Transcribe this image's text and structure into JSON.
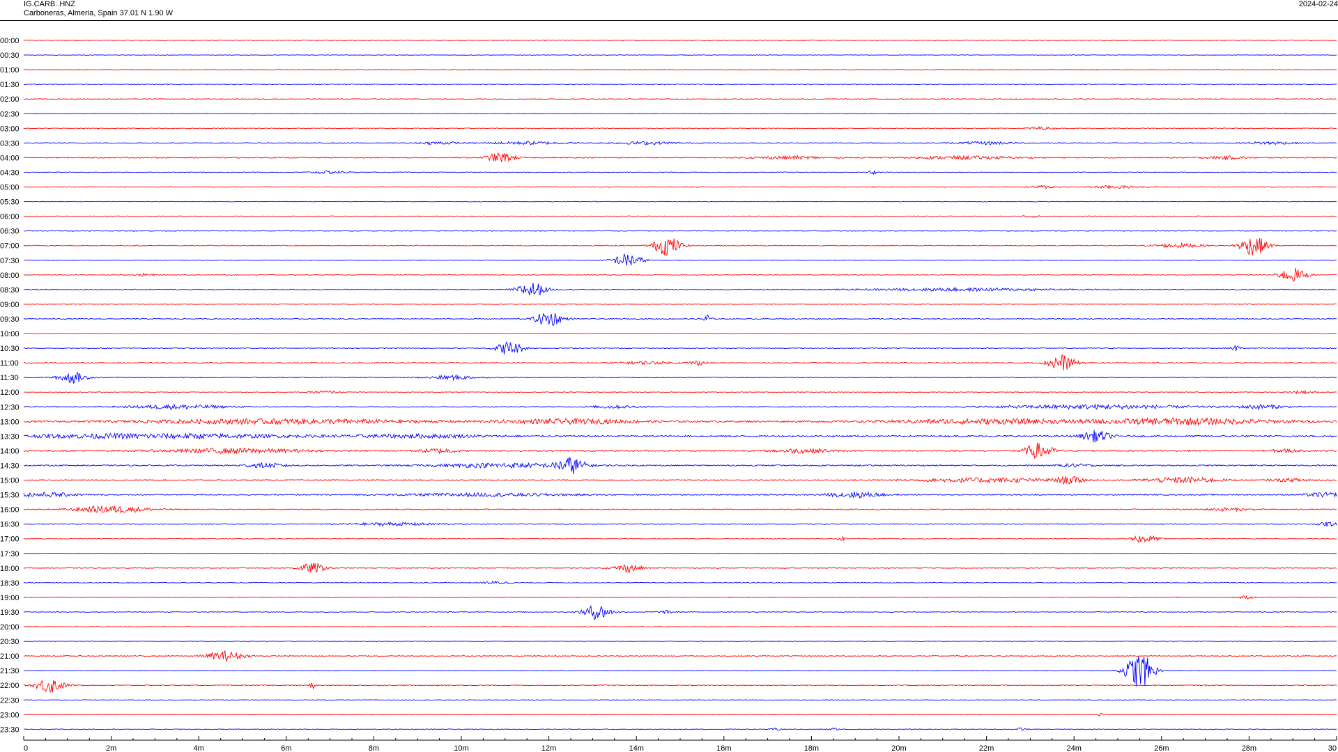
{
  "header": {
    "station_code": "IG.CARB..HNZ",
    "location": "Carboneras, Almeria, Spain  37.01 N 1.90 W",
    "date": "2024-02-24"
  },
  "chart_data": {
    "type": "line",
    "title": "IG.CARB..HNZ",
    "xlabel": "",
    "ylabel": "",
    "x_unit": "minutes",
    "xlim": [
      0,
      30
    ],
    "x_tick_labels": [
      "0",
      "2m",
      "4m",
      "6m",
      "8m",
      "10m",
      "12m",
      "14m",
      "16m",
      "18m",
      "20m",
      "22m",
      "24m",
      "26m",
      "28m",
      "30"
    ],
    "x_ticks": [
      0,
      2,
      4,
      6,
      8,
      10,
      12,
      14,
      16,
      18,
      20,
      22,
      24,
      26,
      28,
      30
    ],
    "colors": {
      "even_row": "#ff0000",
      "odd_row": "#0000ff"
    },
    "rows": [
      {
        "label": "00:00",
        "noise": 0.5,
        "events": []
      },
      {
        "label": "00:30",
        "noise": 0.4,
        "events": []
      },
      {
        "label": "01:00",
        "noise": 0.5,
        "events": []
      },
      {
        "label": "01:30",
        "noise": 0.5,
        "events": []
      },
      {
        "label": "02:00",
        "noise": 0.5,
        "events": []
      },
      {
        "label": "02:30",
        "noise": 0.5,
        "events": []
      },
      {
        "label": "03:00",
        "noise": 0.5,
        "events": [
          {
            "t": 23.2,
            "a": 2,
            "d": 0.3
          }
        ]
      },
      {
        "label": "03:30",
        "noise": 0.6,
        "events": [
          {
            "t": 9.5,
            "a": 2,
            "d": 0.4
          },
          {
            "t": 11.5,
            "a": 2,
            "d": 0.8
          },
          {
            "t": 14.2,
            "a": 2,
            "d": 0.6
          },
          {
            "t": 22.0,
            "a": 2,
            "d": 0.6
          },
          {
            "t": 28.5,
            "a": 2,
            "d": 0.5
          }
        ]
      },
      {
        "label": "04:00",
        "noise": 0.7,
        "events": [
          {
            "t": 10.9,
            "a": 7,
            "d": 0.3
          },
          {
            "t": 17.5,
            "a": 2,
            "d": 0.8
          },
          {
            "t": 21.5,
            "a": 2,
            "d": 1.2
          },
          {
            "t": 27.5,
            "a": 2,
            "d": 0.5
          }
        ]
      },
      {
        "label": "04:30",
        "noise": 0.5,
        "events": [
          {
            "t": 7.0,
            "a": 2,
            "d": 0.4
          },
          {
            "t": 19.4,
            "a": 3,
            "d": 0.1
          }
        ]
      },
      {
        "label": "05:00",
        "noise": 0.5,
        "events": [
          {
            "t": 23.3,
            "a": 2,
            "d": 0.3
          },
          {
            "t": 24.9,
            "a": 2,
            "d": 0.5
          }
        ]
      },
      {
        "label": "05:30",
        "noise": 0.4,
        "events": []
      },
      {
        "label": "06:00",
        "noise": 0.5,
        "events": [
          {
            "t": 23.0,
            "a": 1.5,
            "d": 0.2
          }
        ]
      },
      {
        "label": "06:30",
        "noise": 0.4,
        "events": []
      },
      {
        "label": "07:00",
        "noise": 0.6,
        "events": [
          {
            "t": 14.7,
            "a": 14,
            "d": 0.3
          },
          {
            "t": 26.4,
            "a": 3,
            "d": 0.5
          },
          {
            "t": 28.1,
            "a": 14,
            "d": 0.3
          }
        ]
      },
      {
        "label": "07:30",
        "noise": 0.5,
        "events": [
          {
            "t": 13.8,
            "a": 10,
            "d": 0.3
          }
        ]
      },
      {
        "label": "08:00",
        "noise": 0.5,
        "events": [
          {
            "t": 2.8,
            "a": 2,
            "d": 0.2
          },
          {
            "t": 29.0,
            "a": 10,
            "d": 0.3
          }
        ]
      },
      {
        "label": "08:30",
        "noise": 0.6,
        "events": [
          {
            "t": 11.6,
            "a": 11,
            "d": 0.3
          },
          {
            "t": 21.5,
            "a": 2,
            "d": 2.0
          }
        ]
      },
      {
        "label": "09:00",
        "noise": 0.4,
        "events": []
      },
      {
        "label": "09:30",
        "noise": 0.6,
        "events": [
          {
            "t": 12.0,
            "a": 11,
            "d": 0.3
          },
          {
            "t": 15.6,
            "a": 7,
            "d": 0.1
          }
        ]
      },
      {
        "label": "10:00",
        "noise": 0.4,
        "events": []
      },
      {
        "label": "10:30",
        "noise": 0.5,
        "events": [
          {
            "t": 11.1,
            "a": 10,
            "d": 0.3
          },
          {
            "t": 27.7,
            "a": 4,
            "d": 0.1
          }
        ]
      },
      {
        "label": "11:00",
        "noise": 0.6,
        "events": [
          {
            "t": 14.2,
            "a": 2,
            "d": 0.6
          },
          {
            "t": 15.4,
            "a": 3,
            "d": 0.2
          },
          {
            "t": 23.7,
            "a": 12,
            "d": 0.3
          }
        ]
      },
      {
        "label": "11:30",
        "noise": 0.6,
        "events": [
          {
            "t": 1.1,
            "a": 8,
            "d": 0.3
          },
          {
            "t": 9.8,
            "a": 3,
            "d": 0.5
          }
        ]
      },
      {
        "label": "12:00",
        "noise": 0.5,
        "events": [
          {
            "t": 6.9,
            "a": 2,
            "d": 0.3
          },
          {
            "t": 29.2,
            "a": 2,
            "d": 0.3
          }
        ]
      },
      {
        "label": "12:30",
        "noise": 0.7,
        "events": [
          {
            "t": 3.5,
            "a": 3,
            "d": 1.0
          },
          {
            "t": 13.5,
            "a": 2,
            "d": 0.5
          },
          {
            "t": 24.5,
            "a": 3,
            "d": 2.0
          },
          {
            "t": 28.3,
            "a": 3,
            "d": 0.5
          }
        ]
      },
      {
        "label": "13:00",
        "noise": 1.2,
        "events": [
          {
            "t": 5.8,
            "a": 3,
            "d": 3.0
          },
          {
            "t": 12.5,
            "a": 3,
            "d": 1.5
          },
          {
            "t": 22.0,
            "a": 3,
            "d": 2.0
          },
          {
            "t": 26.5,
            "a": 4,
            "d": 2.0
          }
        ]
      },
      {
        "label": "13:30",
        "noise": 1.2,
        "events": [
          {
            "t": 3.0,
            "a": 3,
            "d": 3.0
          },
          {
            "t": 9.0,
            "a": 2,
            "d": 1.5
          },
          {
            "t": 24.5,
            "a": 8,
            "d": 0.3
          }
        ]
      },
      {
        "label": "14:00",
        "noise": 1.0,
        "events": [
          {
            "t": 4.8,
            "a": 3,
            "d": 1.5
          },
          {
            "t": 9.5,
            "a": 3,
            "d": 0.4
          },
          {
            "t": 17.8,
            "a": 3,
            "d": 0.6
          },
          {
            "t": 23.2,
            "a": 11,
            "d": 0.3
          },
          {
            "t": 28.8,
            "a": 2,
            "d": 0.3
          }
        ]
      },
      {
        "label": "14:30",
        "noise": 0.9,
        "events": [
          {
            "t": 5.5,
            "a": 3,
            "d": 0.5
          },
          {
            "t": 11.0,
            "a": 3,
            "d": 1.5
          },
          {
            "t": 12.5,
            "a": 11,
            "d": 0.3
          },
          {
            "t": 24.0,
            "a": 2,
            "d": 0.4
          }
        ]
      },
      {
        "label": "15:00",
        "noise": 0.8,
        "events": [
          {
            "t": 22.0,
            "a": 3,
            "d": 1.5
          },
          {
            "t": 23.9,
            "a": 5,
            "d": 0.3
          },
          {
            "t": 26.5,
            "a": 4,
            "d": 0.8
          },
          {
            "t": 29.0,
            "a": 2,
            "d": 0.5
          }
        ]
      },
      {
        "label": "15:30",
        "noise": 0.8,
        "events": [
          {
            "t": 0.4,
            "a": 3,
            "d": 0.8
          },
          {
            "t": 10.5,
            "a": 2,
            "d": 2.0
          },
          {
            "t": 19.0,
            "a": 4,
            "d": 0.6
          },
          {
            "t": 29.7,
            "a": 3,
            "d": 0.4
          }
        ]
      },
      {
        "label": "16:00",
        "noise": 0.7,
        "events": [
          {
            "t": 2.0,
            "a": 5,
            "d": 0.8
          },
          {
            "t": 27.5,
            "a": 2,
            "d": 0.5
          }
        ]
      },
      {
        "label": "16:30",
        "noise": 0.6,
        "events": [
          {
            "t": 8.5,
            "a": 2,
            "d": 1.0
          },
          {
            "t": 29.8,
            "a": 3,
            "d": 0.2
          }
        ]
      },
      {
        "label": "17:00",
        "noise": 0.5,
        "events": [
          {
            "t": 18.7,
            "a": 3,
            "d": 0.1
          },
          {
            "t": 25.6,
            "a": 6,
            "d": 0.3
          }
        ]
      },
      {
        "label": "17:30",
        "noise": 0.4,
        "events": []
      },
      {
        "label": "18:00",
        "noise": 0.5,
        "events": [
          {
            "t": 6.6,
            "a": 7,
            "d": 0.3
          },
          {
            "t": 13.8,
            "a": 6,
            "d": 0.3
          }
        ]
      },
      {
        "label": "18:30",
        "noise": 0.5,
        "events": [
          {
            "t": 10.8,
            "a": 2,
            "d": 0.3
          }
        ]
      },
      {
        "label": "19:00",
        "noise": 0.5,
        "events": [
          {
            "t": 27.9,
            "a": 2,
            "d": 0.2
          }
        ]
      },
      {
        "label": "19:30",
        "noise": 0.5,
        "events": [
          {
            "t": 13.1,
            "a": 11,
            "d": 0.3
          },
          {
            "t": 14.7,
            "a": 2,
            "d": 0.2
          }
        ]
      },
      {
        "label": "20:00",
        "noise": 0.4,
        "events": []
      },
      {
        "label": "20:30",
        "noise": 0.4,
        "events": []
      },
      {
        "label": "21:00",
        "noise": 0.6,
        "events": [
          {
            "t": 4.6,
            "a": 7,
            "d": 0.4
          }
        ]
      },
      {
        "label": "21:30",
        "noise": 0.5,
        "events": [
          {
            "t": 25.5,
            "a": 26,
            "d": 0.3
          }
        ]
      },
      {
        "label": "22:00",
        "noise": 0.6,
        "events": [
          {
            "t": 0.6,
            "a": 11,
            "d": 0.3
          },
          {
            "t": 6.6,
            "a": 6,
            "d": 0.05
          }
        ]
      },
      {
        "label": "22:30",
        "noise": 0.4,
        "events": []
      },
      {
        "label": "23:00",
        "noise": 0.4,
        "events": [
          {
            "t": 24.6,
            "a": 3,
            "d": 0.05
          }
        ]
      },
      {
        "label": "23:30",
        "noise": 0.5,
        "events": [
          {
            "t": 17.2,
            "a": 2,
            "d": 0.1
          },
          {
            "t": 18.5,
            "a": 2,
            "d": 0.1
          },
          {
            "t": 22.8,
            "a": 2,
            "d": 0.1
          }
        ]
      }
    ]
  }
}
